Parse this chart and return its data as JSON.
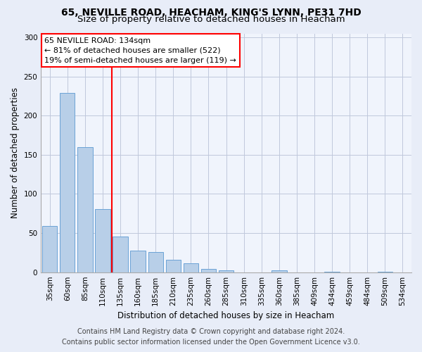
{
  "title_line1": "65, NEVILLE ROAD, HEACHAM, KING'S LYNN, PE31 7HD",
  "title_line2": "Size of property relative to detached houses in Heacham",
  "xlabel": "Distribution of detached houses by size in Heacham",
  "ylabel": "Number of detached properties",
  "bar_labels": [
    "35sqm",
    "60sqm",
    "85sqm",
    "110sqm",
    "135sqm",
    "160sqm",
    "185sqm",
    "210sqm",
    "235sqm",
    "260sqm",
    "285sqm",
    "310sqm",
    "335sqm",
    "360sqm",
    "385sqm",
    "409sqm",
    "434sqm",
    "459sqm",
    "484sqm",
    "509sqm",
    "534sqm"
  ],
  "bar_values": [
    59,
    229,
    160,
    81,
    46,
    28,
    26,
    16,
    11,
    4,
    2,
    0,
    0,
    2,
    0,
    0,
    1,
    0,
    0,
    1,
    0
  ],
  "bar_color": "#b8cfe8",
  "bar_edge_color": "#6ba3d6",
  "vline_x_index": 4,
  "vline_color": "red",
  "annotation_text": "65 NEVILLE ROAD: 134sqm\n← 81% of detached houses are smaller (522)\n19% of semi-detached houses are larger (119) →",
  "annotation_box_color": "white",
  "annotation_box_edge_color": "red",
  "ylim": [
    0,
    305
  ],
  "yticks": [
    0,
    50,
    100,
    150,
    200,
    250,
    300
  ],
  "footer_line1": "Contains HM Land Registry data © Crown copyright and database right 2024.",
  "footer_line2": "Contains public sector information licensed under the Open Government Licence v3.0.",
  "bg_color": "#e8edf8",
  "plot_bg_color": "#f0f4fc",
  "grid_color": "#c0c8dc",
  "title_fontsize": 10,
  "subtitle_fontsize": 9.5,
  "axis_label_fontsize": 8.5,
  "tick_fontsize": 7.5,
  "annotation_fontsize": 8,
  "footer_fontsize": 7
}
